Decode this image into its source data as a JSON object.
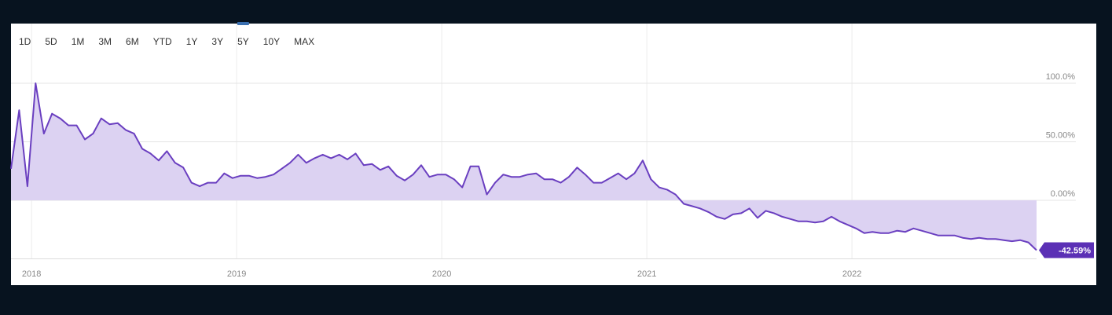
{
  "chart_data": {
    "type": "area",
    "range_buttons": [
      "1D",
      "5D",
      "1M",
      "3M",
      "6M",
      "YTD",
      "1Y",
      "3Y",
      "5Y",
      "10Y",
      "MAX"
    ],
    "selected_index": 8,
    "x": [
      2017.9,
      2017.94,
      2017.98,
      2018.02,
      2018.06,
      2018.1,
      2018.14,
      2018.18,
      2018.22,
      2018.26,
      2018.3,
      2018.34,
      2018.38,
      2018.42,
      2018.46,
      2018.5,
      2018.54,
      2018.58,
      2018.62,
      2018.66,
      2018.7,
      2018.74,
      2018.78,
      2018.82,
      2018.86,
      2018.9,
      2018.94,
      2018.98,
      2019.02,
      2019.06,
      2019.1,
      2019.14,
      2019.18,
      2019.22,
      2019.26,
      2019.3,
      2019.34,
      2019.38,
      2019.42,
      2019.46,
      2019.5,
      2019.54,
      2019.58,
      2019.62,
      2019.66,
      2019.7,
      2019.74,
      2019.78,
      2019.82,
      2019.86,
      2019.9,
      2019.94,
      2019.98,
      2020.02,
      2020.06,
      2020.1,
      2020.14,
      2020.18,
      2020.22,
      2020.26,
      2020.3,
      2020.34,
      2020.38,
      2020.42,
      2020.46,
      2020.5,
      2020.54,
      2020.58,
      2020.62,
      2020.66,
      2020.7,
      2020.74,
      2020.78,
      2020.82,
      2020.86,
      2020.9,
      2020.94,
      2020.98,
      2021.02,
      2021.06,
      2021.1,
      2021.14,
      2021.18,
      2021.22,
      2021.26,
      2021.3,
      2021.34,
      2021.38,
      2021.42,
      2021.46,
      2021.5,
      2021.54,
      2021.58,
      2021.62,
      2021.66,
      2021.7,
      2021.74,
      2021.78,
      2021.82,
      2021.86,
      2021.9,
      2021.94,
      2021.98,
      2022.02,
      2022.06,
      2022.1,
      2022.14,
      2022.18,
      2022.22,
      2022.26,
      2022.3,
      2022.34,
      2022.38,
      2022.42,
      2022.46,
      2022.5,
      2022.54,
      2022.58,
      2022.62,
      2022.66,
      2022.7,
      2022.74,
      2022.78,
      2022.82,
      2022.86,
      2022.9
    ],
    "series": [
      {
        "color": "#6a3fc0",
        "fill": "#dcd2f2",
        "values": [
          27,
          77,
          12,
          100,
          57,
          74,
          70,
          64,
          64,
          52,
          57,
          70,
          65,
          66,
          60,
          57,
          44,
          40,
          34,
          42,
          32,
          28,
          15,
          12,
          15,
          15,
          23,
          19,
          21,
          21,
          19,
          20,
          22,
          27,
          32,
          39,
          32,
          36,
          39,
          36,
          39,
          35,
          40,
          30,
          31,
          26,
          29,
          21,
          17,
          22,
          30,
          20,
          22,
          22,
          18,
          11,
          29,
          29,
          5,
          15,
          22,
          20,
          20,
          22,
          23,
          18,
          18,
          15,
          20,
          28,
          22,
          15,
          15,
          19,
          23,
          18,
          23,
          34,
          18,
          11,
          9,
          5,
          -3,
          -5,
          -7,
          -10,
          -14,
          -16,
          -12,
          -11,
          -7,
          -15,
          -9,
          -11,
          -14,
          -16,
          -18,
          -18,
          -19,
          -18,
          -14,
          -18,
          -21,
          -24,
          -28,
          -27,
          -28,
          -28,
          -26,
          -27,
          -24,
          -26,
          -28,
          -30,
          -30,
          -30,
          -32,
          -33,
          -32,
          -33,
          -33,
          -34,
          -35,
          -34,
          -36,
          -42.59
        ]
      }
    ],
    "current": {
      "value": -42.59,
      "label": "-42.59%"
    },
    "xlim": [
      2017.9,
      2022.9
    ],
    "xticks": [
      2018,
      2019,
      2020,
      2021,
      2022
    ],
    "ylim": [
      -50,
      150
    ],
    "yticks": [
      {
        "value": 0,
        "label": "0.00%"
      },
      {
        "value": 50,
        "label": "50.00%"
      },
      {
        "value": 100,
        "label": "100.0%"
      }
    ],
    "grid": true
  }
}
